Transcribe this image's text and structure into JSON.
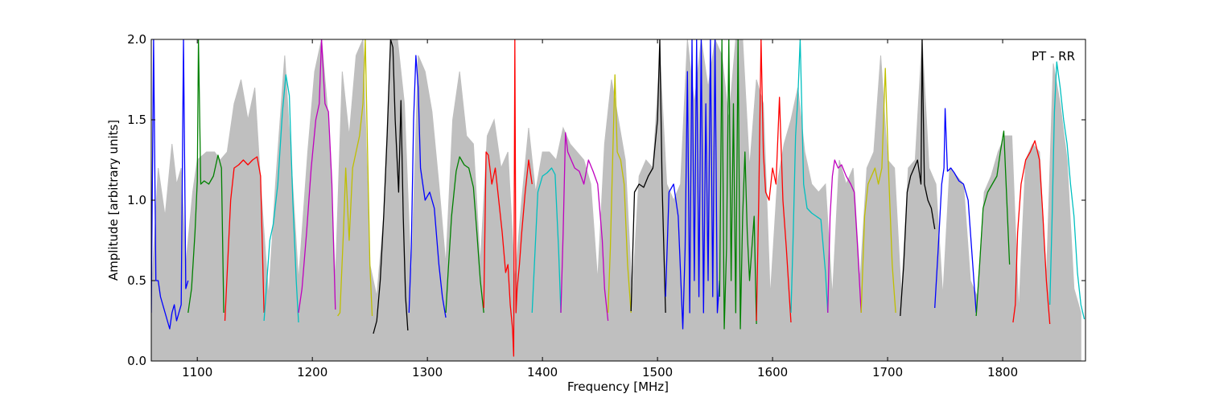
{
  "chart_data": {
    "type": "line",
    "title": "",
    "xlabel": "Frequency [MHz]",
    "ylabel": "Amplitude [arbitrary units]",
    "annotation": "PT - RR",
    "annotation_position": "top-right",
    "xlim": [
      1060,
      1872
    ],
    "ylim": [
      0.0,
      2.0
    ],
    "grid": false,
    "legend": "none",
    "xticks": [
      1100,
      1200,
      1300,
      1400,
      1500,
      1600,
      1700,
      1800
    ],
    "xtick_labels": [
      "1100",
      "1200",
      "1300",
      "1400",
      "1500",
      "1600",
      "1700",
      "1800"
    ],
    "yticks": [
      0.0,
      0.5,
      1.0,
      1.5,
      2.0
    ],
    "ytick_labels": [
      "0.0",
      "0.5",
      "1.0",
      "1.5",
      "2.0"
    ],
    "envelope_color": "#bfbfbf",
    "envelope": {
      "x": [
        1060,
        1066,
        1072,
        1078,
        1082,
        1086,
        1090,
        1096,
        1100,
        1108,
        1115,
        1120,
        1126,
        1132,
        1138,
        1144,
        1150,
        1156,
        1162,
        1168,
        1176,
        1182,
        1188,
        1196,
        1202,
        1208,
        1214,
        1220,
        1226,
        1232,
        1238,
        1244,
        1250,
        1256,
        1262,
        1268,
        1274,
        1280,
        1286,
        1292,
        1298,
        1304,
        1310,
        1316,
        1322,
        1328,
        1334,
        1340,
        1346,
        1352,
        1358,
        1364,
        1370,
        1376,
        1382,
        1388,
        1394,
        1400,
        1406,
        1412,
        1418,
        1424,
        1430,
        1436,
        1442,
        1448,
        1454,
        1460,
        1466,
        1472,
        1478,
        1484,
        1490,
        1496,
        1502,
        1508,
        1514,
        1520,
        1526,
        1532,
        1538,
        1544,
        1550,
        1556,
        1562,
        1568,
        1574,
        1580,
        1586,
        1592,
        1598,
        1604,
        1610,
        1616,
        1622,
        1628,
        1634,
        1640,
        1646,
        1652,
        1658,
        1664,
        1670,
        1676,
        1682,
        1688,
        1694,
        1700,
        1706,
        1712,
        1718,
        1724,
        1730,
        1736,
        1742,
        1748,
        1754,
        1760,
        1766,
        1772,
        1778,
        1784,
        1790,
        1796,
        1802,
        1808,
        1814,
        1820,
        1826,
        1832,
        1838,
        1844,
        1850,
        1856,
        1862,
        1868
      ],
      "y": [
        0.4,
        1.2,
        0.9,
        1.35,
        1.1,
        1.2,
        0.6,
        1.05,
        1.25,
        1.3,
        1.3,
        1.25,
        1.3,
        1.6,
        1.75,
        1.5,
        1.7,
        1.0,
        0.4,
        1.1,
        1.9,
        1.2,
        0.5,
        1.3,
        1.8,
        2.0,
        1.5,
        0.5,
        1.8,
        1.4,
        1.9,
        2.0,
        0.6,
        0.4,
        0.9,
        2.0,
        2.0,
        1.6,
        0.5,
        1.9,
        1.8,
        1.55,
        1.1,
        0.6,
        1.5,
        1.8,
        1.4,
        1.35,
        0.6,
        1.4,
        1.5,
        1.2,
        1.3,
        0.5,
        1.0,
        1.45,
        1.05,
        1.3,
        1.3,
        1.25,
        1.45,
        1.35,
        1.3,
        1.25,
        1.1,
        0.5,
        1.35,
        1.75,
        1.5,
        1.25,
        0.4,
        1.15,
        1.25,
        1.2,
        1.9,
        1.1,
        1.0,
        1.1,
        2.0,
        1.6,
        2.0,
        1.7,
        2.0,
        1.9,
        1.5,
        2.0,
        2.0,
        1.2,
        1.75,
        1.6,
        0.4,
        1.1,
        1.35,
        1.5,
        1.7,
        1.3,
        1.1,
        1.05,
        1.1,
        0.4,
        1.25,
        1.1,
        1.2,
        0.5,
        1.2,
        1.3,
        1.9,
        1.25,
        1.2,
        0.4,
        1.2,
        1.25,
        2.0,
        1.2,
        1.1,
        0.4,
        1.2,
        1.15,
        1.1,
        0.5,
        0.4,
        1.05,
        1.15,
        1.3,
        1.4,
        1.4,
        0.3,
        1.25,
        1.35,
        1.3,
        0.5,
        1.85,
        1.6,
        1.25,
        0.45,
        0.3
      ]
    },
    "series": [
      {
        "color": "#0000ff",
        "x": [
          1060,
          1062,
          1064,
          1066,
          1068,
          1070,
          1072,
          1074,
          1076,
          1078,
          1080,
          1082,
          1084,
          1086,
          1088,
          1090,
          1092
        ],
        "y": [
          0.3,
          2.0,
          0.5,
          0.5,
          0.4,
          0.35,
          0.3,
          0.25,
          0.2,
          0.3,
          0.35,
          0.25,
          0.3,
          0.35,
          2.0,
          0.45,
          0.5
        ]
      },
      {
        "color": "#008000",
        "x": [
          1092,
          1095,
          1098,
          1100,
          1101,
          1103,
          1106,
          1110,
          1114,
          1118,
          1121,
          1123
        ],
        "y": [
          0.3,
          0.45,
          0.8,
          1.12,
          2.0,
          1.1,
          1.12,
          1.1,
          1.15,
          1.28,
          1.2,
          0.3
        ]
      },
      {
        "color": "#ff0000",
        "x": [
          1124,
          1126,
          1129,
          1132,
          1136,
          1140,
          1144,
          1148,
          1152,
          1155,
          1158
        ],
        "y": [
          0.25,
          0.55,
          1.0,
          1.2,
          1.22,
          1.25,
          1.22,
          1.25,
          1.27,
          1.15,
          0.3
        ]
      },
      {
        "color": "#00bfbf",
        "x": [
          1158,
          1160,
          1163,
          1166,
          1170,
          1174,
          1177,
          1180,
          1183,
          1186,
          1188
        ],
        "y": [
          0.25,
          0.45,
          0.75,
          0.85,
          1.1,
          1.55,
          1.78,
          1.65,
          1.0,
          0.5,
          0.24
        ]
      },
      {
        "color": "#bf00bf",
        "x": [
          1188,
          1191,
          1195,
          1199,
          1203,
          1206,
          1208,
          1211,
          1214,
          1217,
          1220
        ],
        "y": [
          0.3,
          0.45,
          0.8,
          1.2,
          1.5,
          1.6,
          2.0,
          1.6,
          1.55,
          1.1,
          0.32
        ]
      },
      {
        "color": "#bfbf00",
        "x": [
          1222,
          1224,
          1227,
          1229,
          1232,
          1235,
          1238,
          1241,
          1244,
          1246,
          1248,
          1250,
          1252
        ],
        "y": [
          0.28,
          0.3,
          0.8,
          1.2,
          0.75,
          1.2,
          1.3,
          1.4,
          1.6,
          2.0,
          1.3,
          0.6,
          0.28
        ]
      },
      {
        "color": "#000000",
        "x": [
          1253,
          1256,
          1259,
          1262,
          1265,
          1268,
          1270,
          1272,
          1275,
          1277,
          1279,
          1281,
          1283
        ],
        "y": [
          0.17,
          0.25,
          0.5,
          0.9,
          1.4,
          2.0,
          1.95,
          1.5,
          1.05,
          1.62,
          0.9,
          0.4,
          0.19
        ]
      },
      {
        "color": "#0000ff",
        "x": [
          1284,
          1286,
          1288,
          1290,
          1292,
          1294,
          1298,
          1302,
          1306,
          1310,
          1313,
          1316
        ],
        "y": [
          0.3,
          0.7,
          1.5,
          1.9,
          1.7,
          1.2,
          1.0,
          1.05,
          0.95,
          0.6,
          0.4,
          0.27
        ]
      },
      {
        "color": "#008000",
        "x": [
          1316,
          1318,
          1321,
          1325,
          1328,
          1332,
          1336,
          1340,
          1343,
          1346,
          1349
        ],
        "y": [
          0.3,
          0.55,
          0.9,
          1.18,
          1.27,
          1.22,
          1.2,
          1.08,
          0.8,
          0.5,
          0.3
        ]
      },
      {
        "color": "#ff0000",
        "x": [
          1349,
          1351,
          1353,
          1356,
          1359,
          1362,
          1365,
          1368,
          1370,
          1372,
          1374,
          1375,
          1376,
          1377,
          1378,
          1380,
          1382,
          1385,
          1388,
          1391
        ],
        "y": [
          0.33,
          1.3,
          1.28,
          1.1,
          1.2,
          1.0,
          0.8,
          0.55,
          0.6,
          0.35,
          0.2,
          0.03,
          2.0,
          0.3,
          0.45,
          0.6,
          0.8,
          1.05,
          1.25,
          1.1
        ]
      },
      {
        "color": "#00bfbf",
        "x": [
          1391,
          1393,
          1396,
          1400,
          1404,
          1408,
          1411,
          1414,
          1416
        ],
        "y": [
          0.3,
          0.6,
          1.05,
          1.15,
          1.17,
          1.2,
          1.16,
          0.7,
          0.3
        ]
      },
      {
        "color": "#bf00bf",
        "x": [
          1416,
          1418,
          1420,
          1422,
          1425,
          1428,
          1432,
          1436,
          1440,
          1444,
          1448,
          1452,
          1454,
          1457
        ],
        "y": [
          0.3,
          0.8,
          1.42,
          1.3,
          1.25,
          1.2,
          1.18,
          1.1,
          1.25,
          1.18,
          1.1,
          0.75,
          0.45,
          0.25
        ]
      },
      {
        "color": "#bfbf00",
        "x": [
          1457,
          1459,
          1461,
          1463,
          1465,
          1468,
          1471,
          1474,
          1477
        ],
        "y": [
          0.3,
          0.7,
          1.25,
          1.78,
          1.3,
          1.25,
          1.1,
          0.6,
          0.3
        ]
      },
      {
        "color": "#000000",
        "x": [
          1477,
          1480,
          1484,
          1488,
          1492,
          1496,
          1500,
          1502,
          1504,
          1507
        ],
        "y": [
          0.31,
          1.05,
          1.1,
          1.08,
          1.15,
          1.2,
          1.5,
          2.0,
          1.1,
          0.3
        ]
      },
      {
        "color": "#0000ff",
        "x": [
          1507,
          1510,
          1514,
          1518,
          1522,
          1524,
          1526,
          1528,
          1530,
          1532,
          1534,
          1536,
          1538,
          1540,
          1542,
          1544,
          1546,
          1548,
          1550,
          1552,
          1554
        ],
        "y": [
          0.4,
          1.05,
          1.1,
          0.9,
          0.2,
          0.7,
          1.8,
          0.3,
          2.0,
          0.5,
          2.0,
          0.4,
          2.0,
          0.3,
          1.6,
          0.5,
          2.0,
          0.4,
          2.0,
          0.3,
          0.5
        ]
      },
      {
        "color": "#008000",
        "x": [
          1554,
          1556,
          1558,
          1560,
          1562,
          1564,
          1566,
          1568,
          1570,
          1572,
          1574,
          1576,
          1578,
          1580,
          1582,
          1584,
          1586
        ],
        "y": [
          0.4,
          2.0,
          0.2,
          0.7,
          2.0,
          0.5,
          1.6,
          0.3,
          2.0,
          0.2,
          0.9,
          1.3,
          0.8,
          0.5,
          0.7,
          0.9,
          0.23
        ]
      },
      {
        "color": "#ff0000",
        "x": [
          1586,
          1588,
          1590,
          1592,
          1594,
          1597,
          1600,
          1603,
          1606,
          1609,
          1612,
          1616
        ],
        "y": [
          0.25,
          1.0,
          2.0,
          1.3,
          1.05,
          1.0,
          1.2,
          1.1,
          1.64,
          1.0,
          0.7,
          0.24
        ]
      },
      {
        "color": "#00bfbf",
        "x": [
          1616,
          1618,
          1620,
          1622,
          1624,
          1627,
          1630,
          1634,
          1638,
          1642,
          1646,
          1648
        ],
        "y": [
          0.3,
          0.8,
          1.4,
          1.64,
          2.0,
          1.1,
          0.95,
          0.92,
          0.9,
          0.88,
          0.55,
          0.3
        ]
      },
      {
        "color": "#bf00bf",
        "x": [
          1648,
          1650,
          1652,
          1654,
          1657,
          1660,
          1664,
          1668,
          1671,
          1674,
          1677
        ],
        "y": [
          0.3,
          0.9,
          1.15,
          1.25,
          1.2,
          1.22,
          1.15,
          1.1,
          1.05,
          0.7,
          0.3
        ]
      },
      {
        "color": "#bfbf00",
        "x": [
          1677,
          1680,
          1683,
          1686,
          1689,
          1692,
          1695,
          1698,
          1701,
          1704,
          1707
        ],
        "y": [
          0.3,
          0.9,
          1.1,
          1.15,
          1.2,
          1.1,
          1.2,
          1.82,
          1.15,
          0.6,
          0.3
        ]
      },
      {
        "color": "#000000",
        "x": [
          1711,
          1714,
          1717,
          1720,
          1723,
          1726,
          1729,
          1730,
          1732,
          1735,
          1738,
          1741
        ],
        "y": [
          0.28,
          0.6,
          1.05,
          1.15,
          1.2,
          1.25,
          1.1,
          2.0,
          1.1,
          1.0,
          0.95,
          0.82
        ]
      },
      {
        "color": "#0000ff",
        "x": [
          1741,
          1744,
          1747,
          1749,
          1750,
          1752,
          1755,
          1758,
          1762,
          1766,
          1770,
          1774,
          1777
        ],
        "y": [
          0.33,
          0.7,
          1.1,
          1.2,
          1.57,
          1.18,
          1.2,
          1.17,
          1.12,
          1.1,
          1.0,
          0.6,
          0.3
        ]
      },
      {
        "color": "#008000",
        "x": [
          1777,
          1780,
          1783,
          1787,
          1791,
          1795,
          1798,
          1801,
          1803,
          1806
        ],
        "y": [
          0.28,
          0.6,
          0.95,
          1.05,
          1.1,
          1.15,
          1.3,
          1.43,
          1.1,
          0.6
        ]
      },
      {
        "color": "#ff0000",
        "x": [
          1809,
          1811,
          1813,
          1816,
          1820,
          1824,
          1828,
          1832,
          1835,
          1838,
          1841
        ],
        "y": [
          0.24,
          0.35,
          0.8,
          1.1,
          1.25,
          1.3,
          1.37,
          1.25,
          0.9,
          0.5,
          0.23
        ]
      },
      {
        "color": "#00bfbf",
        "x": [
          1841,
          1843,
          1845,
          1847,
          1850,
          1853,
          1856,
          1859,
          1862,
          1865,
          1868,
          1871
        ],
        "y": [
          0.35,
          0.9,
          1.55,
          1.86,
          1.7,
          1.5,
          1.35,
          1.1,
          0.9,
          0.55,
          0.35,
          0.26
        ]
      }
    ]
  }
}
